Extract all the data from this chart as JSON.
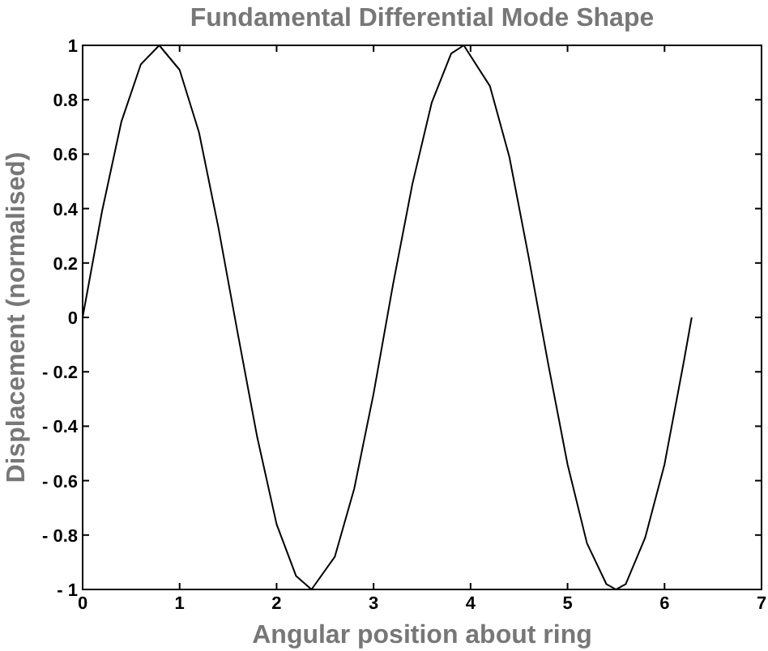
{
  "chart_data": {
    "type": "line",
    "title": "Fundamental Differential Mode Shape",
    "xlabel": "Angular position about ring",
    "ylabel": "Displacement (normalised)",
    "xlim": [
      0,
      7
    ],
    "xticks": [
      0,
      1,
      2,
      3,
      4,
      5,
      6,
      7
    ],
    "ylim": [
      -1,
      1
    ],
    "yticks": [
      {
        "value": -1,
        "label": "- 1"
      },
      {
        "value": -0.8,
        "label": "- 0.8"
      },
      {
        "value": -0.6,
        "label": "- 0.6"
      },
      {
        "value": -0.4,
        "label": "- 0.4"
      },
      {
        "value": -0.2,
        "label": "- 0.2"
      },
      0,
      0.2,
      0.4,
      0.6,
      0.8,
      1
    ],
    "grid": false,
    "marker": "none",
    "line_style": "solid",
    "series": [
      {
        "color": "#000000",
        "x": [
          0,
          0.2,
          0.4,
          0.6,
          0.79,
          1.0,
          1.2,
          1.4,
          1.6,
          1.8,
          2.0,
          2.2,
          2.36,
          2.6,
          2.8,
          3.0,
          3.2,
          3.4,
          3.6,
          3.8,
          3.93,
          4.2,
          4.4,
          4.6,
          4.8,
          5.0,
          5.2,
          5.4,
          5.5,
          5.6,
          5.8,
          6.0,
          6.2,
          6.28
        ],
        "values": [
          0,
          0.39,
          0.72,
          0.93,
          1,
          0.91,
          0.68,
          0.33,
          -0.06,
          -0.44,
          -0.76,
          -0.95,
          -1,
          -0.88,
          -0.63,
          -0.28,
          0.12,
          0.49,
          0.79,
          0.97,
          1,
          0.85,
          0.59,
          0.22,
          -0.17,
          -0.54,
          -0.83,
          -0.98,
          -1,
          -0.98,
          -0.81,
          -0.54,
          -0.16,
          0
        ]
      }
    ]
  }
}
